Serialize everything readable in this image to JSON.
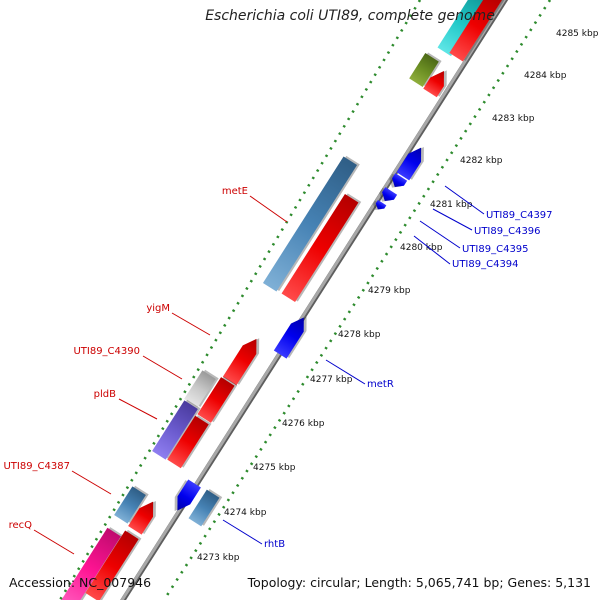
{
  "title": "Escherichia coli UTI89, complete genome",
  "footer": {
    "accession": "Accession: NC_007946",
    "topology": "Topology: circular; Length: 5,065,741 bp; Genes: 5,131"
  },
  "colors": {
    "backbone": "#8c8c8c",
    "ruler_dots": "#2e8b2e",
    "label_red": "#cc0000",
    "label_blue": "#0000cc"
  },
  "ticks": [
    "4273 kbp",
    "4274 kbp",
    "4275 kbp",
    "4276 kbp",
    "4277 kbp",
    "4278 kbp",
    "4279 kbp",
    "4280 kbp",
    "4281 kbp",
    "4282 kbp",
    "4283 kbp",
    "4284 kbp",
    "4285 kbp"
  ],
  "labels": [
    {
      "text": "metE",
      "color": "red"
    },
    {
      "text": "yigM",
      "color": "red"
    },
    {
      "text": "UTI89_C4390",
      "color": "red"
    },
    {
      "text": "pldB",
      "color": "red"
    },
    {
      "text": "UTI89_C4387",
      "color": "red"
    },
    {
      "text": "recQ",
      "color": "red"
    },
    {
      "text": "UTI89_C4397",
      "color": "blue"
    },
    {
      "text": "UTI89_C4396",
      "color": "blue"
    },
    {
      "text": "UTI89_C4395",
      "color": "blue"
    },
    {
      "text": "UTI89_C4394",
      "color": "blue"
    },
    {
      "text": "metR",
      "color": "blue"
    },
    {
      "text": "rhtB",
      "color": "blue"
    }
  ]
}
